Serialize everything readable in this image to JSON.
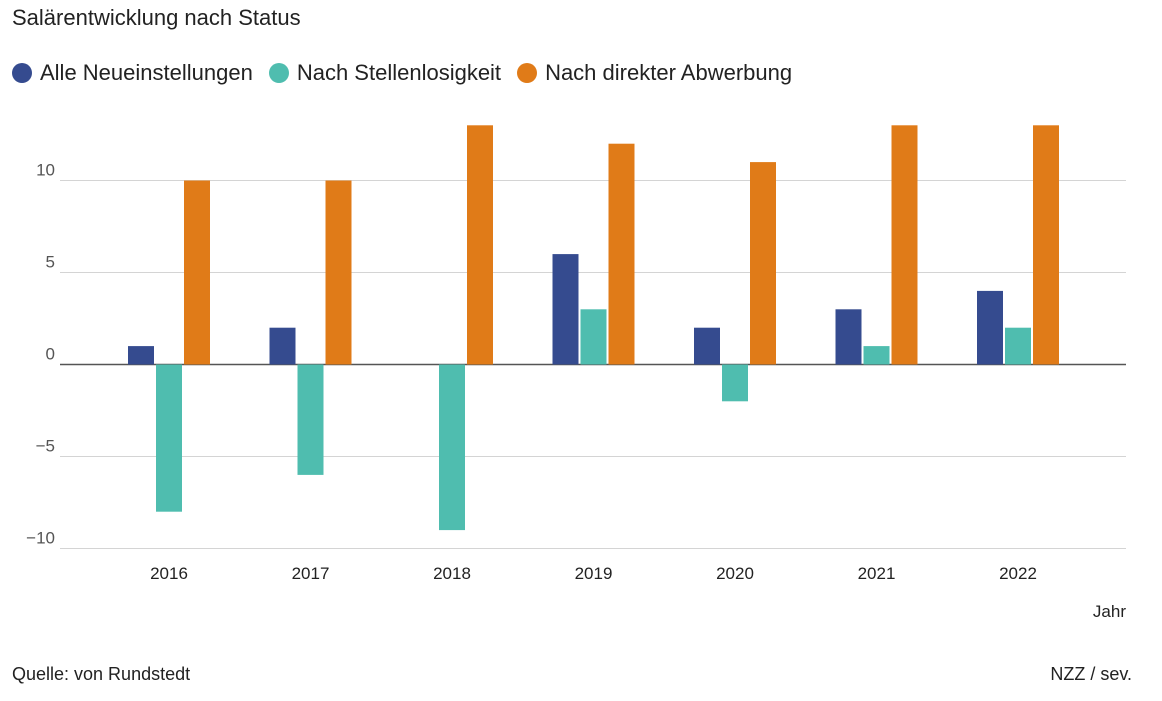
{
  "title": "Salärentwicklung nach Status",
  "source": "Quelle: von Rundstedt",
  "credit": "NZZ / sev.",
  "legend": [
    {
      "label": "Alle Neueinstellungen",
      "color": "#354B8F"
    },
    {
      "label": "Nach Stellenlosigkeit",
      "color": "#4FBDAF"
    },
    {
      "label": "Nach direkter Abwerbung",
      "color": "#E07B18"
    }
  ],
  "chart_data": {
    "type": "bar",
    "categories": [
      "2016",
      "2017",
      "2018",
      "2019",
      "2020",
      "2021",
      "2022"
    ],
    "series": [
      {
        "name": "Alle Neueinstellungen",
        "color": "#354B8F",
        "values": [
          1,
          2,
          0,
          6,
          2,
          3,
          4
        ]
      },
      {
        "name": "Nach Stellenlosigkeit",
        "color": "#4FBDAF",
        "values": [
          -8,
          -6,
          -9,
          3,
          -2,
          1,
          2
        ]
      },
      {
        "name": "Nach direkter Abwerbung",
        "color": "#E07B18",
        "values": [
          10,
          10,
          13,
          12,
          11,
          13,
          13
        ]
      }
    ],
    "xlabel": "Jahr",
    "ylabel": "",
    "ylim": [
      -10,
      13
    ],
    "yticks": [
      10,
      5,
      0,
      -5,
      -10
    ],
    "ytick_labels": [
      "10",
      "5",
      "0",
      "−5",
      "−10"
    ],
    "grid": true
  }
}
